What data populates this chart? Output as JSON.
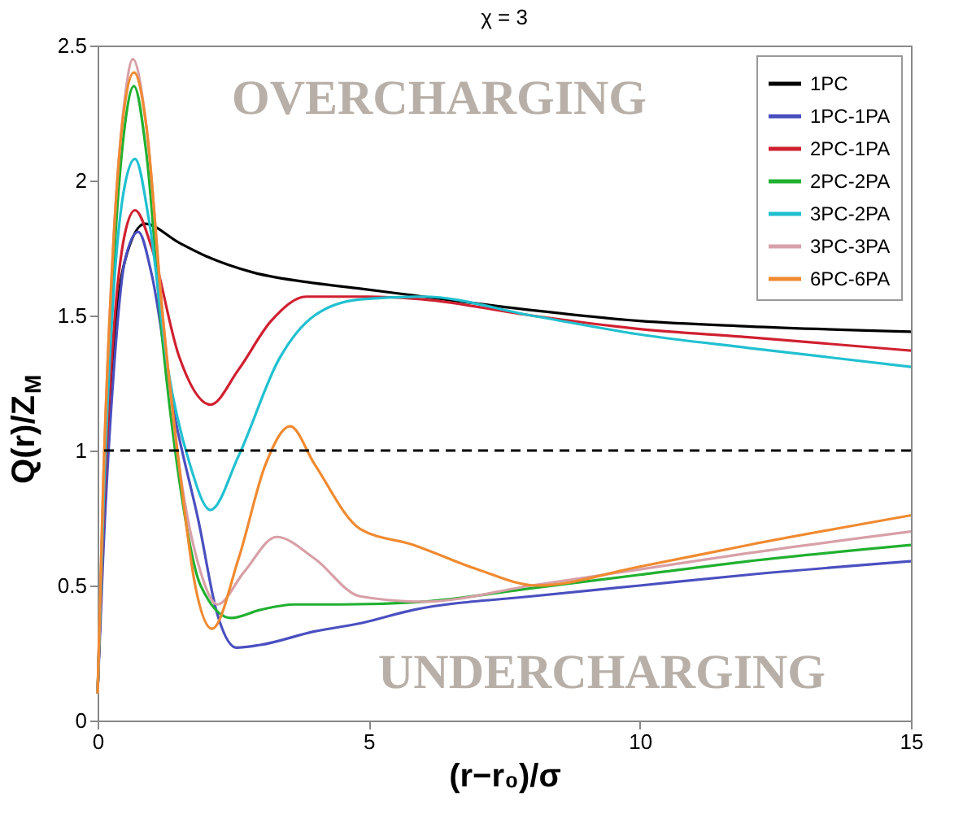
{
  "chart_data": {
    "type": "line",
    "title": "χ = 3",
    "xlabel": "(r−r₀)/σ",
    "ylabel": "Q(r)/Z$_{M}$",
    "xlim": [
      0,
      15
    ],
    "ylim": [
      0,
      2.5
    ],
    "xticks": [
      0,
      5,
      10,
      15
    ],
    "yticks": [
      0,
      0.5,
      1,
      1.5,
      2,
      2.5
    ],
    "grid": false,
    "legend": "top right",
    "annotations": [
      "OVERCHARGING",
      "UNDERCHARGING"
    ],
    "ref_lines": [
      {
        "axis": "y",
        "value": 1,
        "label": null,
        "color": "#000000",
        "line_style": "dashed"
      }
    ],
    "series": [
      {
        "name": "1PC",
        "color": "#000000",
        "x": [
          0,
          0.1,
          0.3,
          0.5,
          0.87,
          1.5,
          2.0,
          2.86,
          4.0,
          4.84,
          6,
          8,
          10,
          12,
          15
        ],
        "values": [
          0.1,
          0.7,
          1.4,
          1.7,
          1.84,
          1.77,
          1.72,
          1.66,
          1.62,
          1.6,
          1.57,
          1.52,
          1.48,
          1.46,
          1.44
        ]
      },
      {
        "name": "1PC-1PA",
        "color": "#4a4fc0",
        "x": [
          0,
          0.1,
          0.3,
          0.5,
          0.75,
          1.0,
          1.4,
          1.87,
          2.2,
          2.56,
          3.0,
          4.0,
          4.84,
          5.83,
          8,
          10,
          12,
          15
        ],
        "values": [
          0.1,
          0.6,
          1.3,
          1.7,
          1.81,
          1.65,
          1.15,
          0.73,
          0.4,
          0.27,
          0.28,
          0.33,
          0.36,
          0.41,
          0.46,
          0.5,
          0.54,
          0.59
        ]
      },
      {
        "name": "2PC-1PA",
        "color": "#d02030",
        "x": [
          0,
          0.1,
          0.3,
          0.5,
          0.69,
          1.0,
          1.5,
          2.08,
          2.6,
          3.2,
          3.85,
          5,
          6,
          8,
          10,
          12,
          15
        ],
        "values": [
          0.1,
          0.7,
          1.45,
          1.8,
          1.89,
          1.75,
          1.35,
          1.17,
          1.3,
          1.48,
          1.57,
          1.57,
          1.56,
          1.5,
          1.45,
          1.42,
          1.37
        ]
      },
      {
        "name": "2PC-2PA",
        "color": "#20b030",
        "x": [
          0,
          0.1,
          0.3,
          0.5,
          0.67,
          0.9,
          1.2,
          1.5,
          1.9,
          2.46,
          3.0,
          3.65,
          4.5,
          6,
          8,
          10,
          12,
          15
        ],
        "values": [
          0.1,
          0.8,
          1.7,
          2.2,
          2.35,
          2.1,
          1.4,
          0.9,
          0.5,
          0.38,
          0.41,
          0.43,
          0.43,
          0.44,
          0.49,
          0.54,
          0.59,
          0.65
        ]
      },
      {
        "name": "3PC-2PA",
        "color": "#20c0d0",
        "x": [
          0,
          0.1,
          0.3,
          0.5,
          0.69,
          0.95,
          1.3,
          1.7,
          2.08,
          2.6,
          3.35,
          4.0,
          4.84,
          6,
          8,
          10,
          12,
          15
        ],
        "values": [
          0.1,
          0.75,
          1.6,
          1.98,
          2.08,
          1.85,
          1.3,
          0.95,
          0.78,
          0.98,
          1.34,
          1.5,
          1.56,
          1.57,
          1.5,
          1.43,
          1.38,
          1.31
        ]
      },
      {
        "name": "3PC-3PA",
        "color": "#d8a0a8",
        "x": [
          0,
          0.1,
          0.3,
          0.5,
          0.65,
          0.9,
          1.2,
          1.5,
          1.9,
          2.21,
          2.7,
          3.3,
          4.0,
          4.84,
          6,
          8,
          10,
          12,
          15
        ],
        "values": [
          0.1,
          0.85,
          1.8,
          2.3,
          2.45,
          2.2,
          1.5,
          0.95,
          0.55,
          0.43,
          0.55,
          0.68,
          0.6,
          0.46,
          0.44,
          0.5,
          0.56,
          0.62,
          0.7
        ]
      },
      {
        "name": "6PC-6PA",
        "color": "#f08a30",
        "x": [
          0,
          0.1,
          0.3,
          0.5,
          0.67,
          0.9,
          1.2,
          1.5,
          1.8,
          2.11,
          2.6,
          3.1,
          3.55,
          4.0,
          4.84,
          5.83,
          7,
          8.1,
          10,
          12,
          15
        ],
        "values": [
          0.1,
          0.85,
          1.8,
          2.28,
          2.4,
          2.2,
          1.5,
          0.95,
          0.5,
          0.34,
          0.6,
          0.95,
          1.09,
          0.95,
          0.71,
          0.65,
          0.56,
          0.5,
          0.57,
          0.65,
          0.76
        ]
      }
    ]
  }
}
